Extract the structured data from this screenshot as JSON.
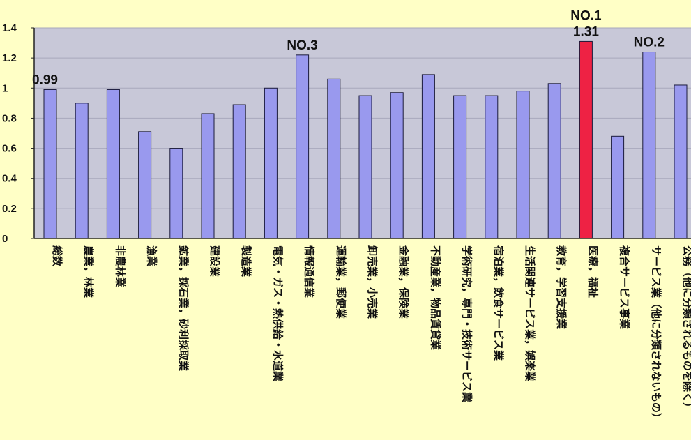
{
  "chart_data": {
    "type": "bar",
    "title": "",
    "xlabel": "",
    "ylabel": "",
    "ylim": [
      0,
      1.4
    ],
    "yticks": [
      "0",
      "0.2",
      "0.4",
      "0.6",
      "0.8",
      "1",
      "1.2",
      "1.4"
    ],
    "grid": true,
    "categories": [
      "総数",
      "農業，林業",
      "非農林業",
      "漁業",
      "鉱業，採石業，砂利採取業",
      "建設業",
      "製造業",
      "電気・ガス・熱供給・水道業",
      "情報通信業",
      "運輸業，郵便業",
      "卸売業，小売業",
      "金融業，保険業",
      "不動産業，物品賃貸業",
      "学術研究，専門・技術サービス業",
      "宿泊業，飲食サービス業",
      "生活関連サービス業，娯楽業",
      "教育，学習支援業",
      "医療，福祉",
      "複合サービス事業",
      "サービス業（他に分類されないもの）",
      "公務（他に分類されるものを除く）"
    ],
    "values": [
      0.99,
      0.9,
      0.99,
      0.71,
      0.6,
      0.83,
      0.89,
      1.0,
      1.22,
      1.06,
      0.95,
      0.97,
      1.09,
      0.95,
      0.95,
      0.98,
      1.03,
      1.31,
      0.68,
      1.24,
      1.02
    ],
    "bar_color": "#9999ee",
    "highlight_color": "#ee2244",
    "highlight_index": 17,
    "annotations": [
      {
        "index": 0,
        "lines": [
          "0.99"
        ]
      },
      {
        "index": 8,
        "lines": [
          "NO.3"
        ]
      },
      {
        "index": 17,
        "lines": [
          "NO.1",
          "1.31"
        ]
      },
      {
        "index": 19,
        "lines": [
          "NO.2"
        ]
      }
    ]
  }
}
